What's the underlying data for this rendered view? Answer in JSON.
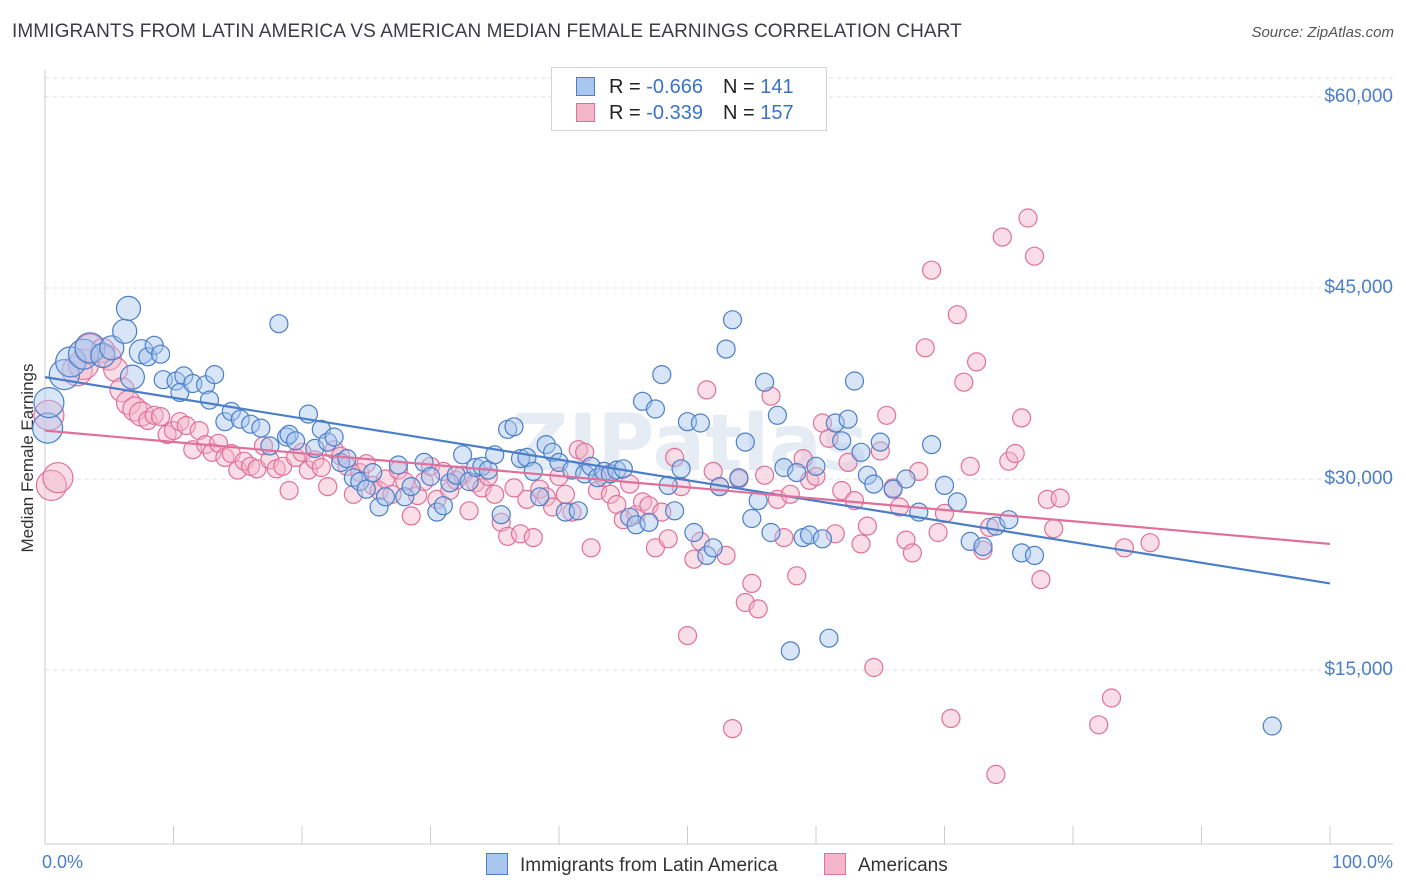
{
  "title": "IMMIGRANTS FROM LATIN AMERICA VS AMERICAN MEDIAN FEMALE EARNINGS CORRELATION CHART",
  "source": "Source: ZipAtlas.com",
  "watermark": "ZIPatlas",
  "colors": {
    "blue": "#4a7ec9",
    "blue_fill": "#a9c6ee",
    "pink": "#e0709a",
    "pink_fill": "#f4b6c9",
    "grid": "#dcdcdc"
  },
  "legend": {
    "series1": {
      "r_label": "R = ",
      "r_value": "-0.666",
      "n_label": "N = ",
      "n_value": "141"
    },
    "series2": {
      "r_label": "R = ",
      "r_value": "-0.339",
      "n_label": "N = ",
      "n_value": "157"
    }
  },
  "chart_data": {
    "type": "scatter",
    "title": "IMMIGRANTS FROM LATIN AMERICA VS AMERICAN MEDIAN FEMALE EARNINGS CORRELATION CHART",
    "xlabel": "",
    "ylabel": "Median Female Earnings",
    "xlim": [
      0,
      100
    ],
    "ylim": [
      0,
      63000
    ],
    "x_tick_labels": [
      "0.0%",
      "100.0%"
    ],
    "y_ticks": [
      15000,
      30000,
      45000,
      60000
    ],
    "y_tick_labels": [
      "$15,000",
      "$30,000",
      "$45,000",
      "$60,000"
    ],
    "legend_position": "bottom-center",
    "series": [
      {
        "name": "Immigrants from Latin America",
        "trend": {
          "x": [
            0,
            100
          ],
          "y": [
            38000,
            21800
          ]
        },
        "points": [
          [
            0.2,
            34000
          ],
          [
            0.3,
            36000
          ],
          [
            1.5,
            38200
          ],
          [
            2,
            39200
          ],
          [
            3,
            39800
          ],
          [
            3.5,
            40300
          ],
          [
            4.5,
            39700
          ],
          [
            5.2,
            40300
          ],
          [
            6.2,
            41600
          ],
          [
            6.5,
            43400
          ],
          [
            6.8,
            38000
          ],
          [
            7.5,
            40000
          ],
          [
            8,
            39600
          ],
          [
            8.5,
            40500
          ],
          [
            9,
            39800
          ],
          [
            9.2,
            37800
          ],
          [
            10.2,
            37700
          ],
          [
            10.8,
            38100
          ],
          [
            10.5,
            36800
          ],
          [
            11.5,
            37500
          ],
          [
            12.5,
            37400
          ],
          [
            12.8,
            36200
          ],
          [
            13.2,
            38200
          ],
          [
            14,
            34500
          ],
          [
            14.5,
            35300
          ],
          [
            15.2,
            34700
          ],
          [
            16,
            34300
          ],
          [
            16.8,
            34000
          ],
          [
            17.5,
            32600
          ],
          [
            18.2,
            42200
          ],
          [
            18.8,
            33300
          ],
          [
            19,
            33500
          ],
          [
            19.5,
            33000
          ],
          [
            20.5,
            35100
          ],
          [
            21,
            32400
          ],
          [
            21.5,
            33900
          ],
          [
            22,
            32900
          ],
          [
            22.5,
            33300
          ],
          [
            23,
            31300
          ],
          [
            23.5,
            31600
          ],
          [
            24,
            30100
          ],
          [
            24.5,
            29800
          ],
          [
            25,
            29200
          ],
          [
            25.5,
            30500
          ],
          [
            26,
            27800
          ],
          [
            26.5,
            28600
          ],
          [
            27.5,
            31100
          ],
          [
            28,
            28600
          ],
          [
            28.5,
            29400
          ],
          [
            29.5,
            31300
          ],
          [
            30,
            30200
          ],
          [
            30.5,
            27400
          ],
          [
            31,
            27900
          ],
          [
            31.5,
            29700
          ],
          [
            32,
            30300
          ],
          [
            32.5,
            31900
          ],
          [
            33,
            29800
          ],
          [
            33.5,
            30900
          ],
          [
            34,
            31000
          ],
          [
            34.5,
            30700
          ],
          [
            35,
            31900
          ],
          [
            35.5,
            27200
          ],
          [
            36,
            33900
          ],
          [
            36.5,
            34100
          ],
          [
            37,
            31600
          ],
          [
            37.5,
            31700
          ],
          [
            38,
            30600
          ],
          [
            38.5,
            28600
          ],
          [
            39,
            32700
          ],
          [
            39.5,
            32100
          ],
          [
            40,
            31300
          ],
          [
            40.5,
            27400
          ],
          [
            41,
            30700
          ],
          [
            41.5,
            27500
          ],
          [
            42,
            30400
          ],
          [
            42.5,
            31000
          ],
          [
            43,
            30100
          ],
          [
            43.5,
            30600
          ],
          [
            44,
            30400
          ],
          [
            44.5,
            30700
          ],
          [
            45,
            30800
          ],
          [
            45.5,
            27000
          ],
          [
            46,
            26400
          ],
          [
            46.5,
            36100
          ],
          [
            47,
            26600
          ],
          [
            47.5,
            35500
          ],
          [
            48,
            38200
          ],
          [
            48.5,
            29500
          ],
          [
            49,
            27500
          ],
          [
            49.5,
            30800
          ],
          [
            50,
            34500
          ],
          [
            50.5,
            25800
          ],
          [
            51,
            34400
          ],
          [
            51.5,
            24000
          ],
          [
            52,
            24600
          ],
          [
            52.5,
            29400
          ],
          [
            53,
            40200
          ],
          [
            53.5,
            42500
          ],
          [
            54,
            30100
          ],
          [
            54.5,
            32900
          ],
          [
            55,
            26900
          ],
          [
            55.5,
            28300
          ],
          [
            56,
            37600
          ],
          [
            56.5,
            25800
          ],
          [
            57,
            35000
          ],
          [
            57.5,
            30900
          ],
          [
            58,
            16500
          ],
          [
            58.5,
            30500
          ],
          [
            59,
            25400
          ],
          [
            59.5,
            25600
          ],
          [
            60,
            31000
          ],
          [
            60.5,
            25300
          ],
          [
            61,
            17500
          ],
          [
            61.5,
            34400
          ],
          [
            62,
            33000
          ],
          [
            62.5,
            34700
          ],
          [
            63,
            37700
          ],
          [
            63.5,
            32100
          ],
          [
            64,
            30300
          ],
          [
            64.5,
            29600
          ],
          [
            65,
            32900
          ],
          [
            66,
            29200
          ],
          [
            67,
            30000
          ],
          [
            68,
            27400
          ],
          [
            69,
            32700
          ],
          [
            70,
            29500
          ],
          [
            71,
            28200
          ],
          [
            72,
            25100
          ],
          [
            73,
            24700
          ],
          [
            74,
            26300
          ],
          [
            75,
            26800
          ],
          [
            76,
            24200
          ],
          [
            77,
            24000
          ],
          [
            95.5,
            10600
          ]
        ]
      },
      {
        "name": "Americans",
        "trend": {
          "x": [
            0,
            100
          ],
          "y": [
            33800,
            24900
          ]
        },
        "points": [
          [
            0.3,
            35000
          ],
          [
            0.5,
            29500
          ],
          [
            1,
            30100
          ],
          [
            2.5,
            38500
          ],
          [
            3,
            39000
          ],
          [
            3.5,
            40200
          ],
          [
            4.5,
            40100
          ],
          [
            5,
            39500
          ],
          [
            5.5,
            38600
          ],
          [
            6,
            37000
          ],
          [
            6.5,
            36000
          ],
          [
            7,
            35500
          ],
          [
            7.5,
            35100
          ],
          [
            8,
            34600
          ],
          [
            8.5,
            35000
          ],
          [
            9,
            34900
          ],
          [
            9.5,
            33500
          ],
          [
            10,
            33800
          ],
          [
            10.5,
            34500
          ],
          [
            11,
            34200
          ],
          [
            11.5,
            32300
          ],
          [
            12,
            33800
          ],
          [
            12.5,
            32700
          ],
          [
            13,
            32100
          ],
          [
            13.5,
            32800
          ],
          [
            14,
            31700
          ],
          [
            14.5,
            32000
          ],
          [
            15,
            30700
          ],
          [
            15.5,
            31400
          ],
          [
            16,
            31000
          ],
          [
            16.5,
            30800
          ],
          [
            17,
            32600
          ],
          [
            17.5,
            31500
          ],
          [
            18,
            30800
          ],
          [
            18.5,
            31000
          ],
          [
            19,
            29100
          ],
          [
            19.5,
            31700
          ],
          [
            20,
            32100
          ],
          [
            20.5,
            30700
          ],
          [
            21,
            31500
          ],
          [
            21.5,
            30900
          ],
          [
            22,
            29400
          ],
          [
            22.5,
            32300
          ],
          [
            23,
            31800
          ],
          [
            23.5,
            31000
          ],
          [
            24,
            28800
          ],
          [
            24.5,
            30500
          ],
          [
            25,
            31200
          ],
          [
            25.5,
            29500
          ],
          [
            26,
            29100
          ],
          [
            26.5,
            30000
          ],
          [
            27,
            28800
          ],
          [
            27.5,
            30700
          ],
          [
            28,
            29800
          ],
          [
            28.5,
            27100
          ],
          [
            29,
            28700
          ],
          [
            29.5,
            29800
          ],
          [
            30,
            31000
          ],
          [
            30.5,
            28400
          ],
          [
            31,
            30600
          ],
          [
            31.5,
            29100
          ],
          [
            32,
            29900
          ],
          [
            32.5,
            30300
          ],
          [
            33,
            27500
          ],
          [
            33.5,
            29700
          ],
          [
            34,
            29300
          ],
          [
            34.5,
            30200
          ],
          [
            35,
            28800
          ],
          [
            35.5,
            26600
          ],
          [
            36,
            25500
          ],
          [
            36.5,
            29300
          ],
          [
            37,
            25700
          ],
          [
            37.5,
            28400
          ],
          [
            38,
            25400
          ],
          [
            38.5,
            29200
          ],
          [
            39,
            28600
          ],
          [
            39.5,
            27800
          ],
          [
            40,
            30200
          ],
          [
            40.5,
            28800
          ],
          [
            41,
            27400
          ],
          [
            41.5,
            32300
          ],
          [
            42,
            32100
          ],
          [
            42.5,
            24600
          ],
          [
            43,
            29100
          ],
          [
            43.5,
            30100
          ],
          [
            44,
            28800
          ],
          [
            44.5,
            28000
          ],
          [
            45,
            26800
          ],
          [
            45.5,
            29600
          ],
          [
            46,
            27200
          ],
          [
            46.5,
            28200
          ],
          [
            47,
            27900
          ],
          [
            47.5,
            24600
          ],
          [
            48,
            27400
          ],
          [
            48.5,
            25300
          ],
          [
            49,
            31700
          ],
          [
            49.5,
            29400
          ],
          [
            50,
            17700
          ],
          [
            50.5,
            23700
          ],
          [
            51,
            25100
          ],
          [
            51.5,
            37000
          ],
          [
            52,
            30600
          ],
          [
            52.5,
            29400
          ],
          [
            53,
            24000
          ],
          [
            53.5,
            10400
          ],
          [
            54,
            30000
          ],
          [
            54.5,
            20300
          ],
          [
            55,
            21800
          ],
          [
            55.5,
            19800
          ],
          [
            56,
            30300
          ],
          [
            56.5,
            36500
          ],
          [
            57,
            28400
          ],
          [
            57.5,
            25400
          ],
          [
            58,
            28800
          ],
          [
            58.5,
            22400
          ],
          [
            59,
            31600
          ],
          [
            59.5,
            29900
          ],
          [
            60,
            30200
          ],
          [
            60.5,
            34400
          ],
          [
            61,
            33200
          ],
          [
            61.5,
            25700
          ],
          [
            62,
            29100
          ],
          [
            62.5,
            31300
          ],
          [
            63,
            28300
          ],
          [
            63.5,
            24900
          ],
          [
            64,
            26300
          ],
          [
            64.5,
            15200
          ],
          [
            65,
            32200
          ],
          [
            65.5,
            35000
          ],
          [
            66,
            29300
          ],
          [
            66.5,
            27800
          ],
          [
            67,
            25200
          ],
          [
            67.5,
            24200
          ],
          [
            68,
            30600
          ],
          [
            68.5,
            40300
          ],
          [
            69,
            46400
          ],
          [
            69.5,
            25800
          ],
          [
            70,
            27300
          ],
          [
            70.5,
            11200
          ],
          [
            71,
            42900
          ],
          [
            71.5,
            37600
          ],
          [
            72,
            31000
          ],
          [
            72.5,
            39200
          ],
          [
            73,
            24400
          ],
          [
            73.5,
            26200
          ],
          [
            74,
            6800
          ],
          [
            74.5,
            49000
          ],
          [
            75,
            31400
          ],
          [
            75.5,
            32000
          ],
          [
            76,
            34800
          ],
          [
            76.5,
            50500
          ],
          [
            77,
            47500
          ],
          [
            77.5,
            22100
          ],
          [
            78,
            28400
          ],
          [
            78.5,
            26100
          ],
          [
            79,
            28500
          ],
          [
            82,
            10700
          ],
          [
            83,
            12800
          ],
          [
            84,
            24600
          ],
          [
            86,
            25000
          ]
        ]
      }
    ]
  },
  "bottom_legend": {
    "series1": "Immigrants from Latin America",
    "series2": "Americans"
  }
}
